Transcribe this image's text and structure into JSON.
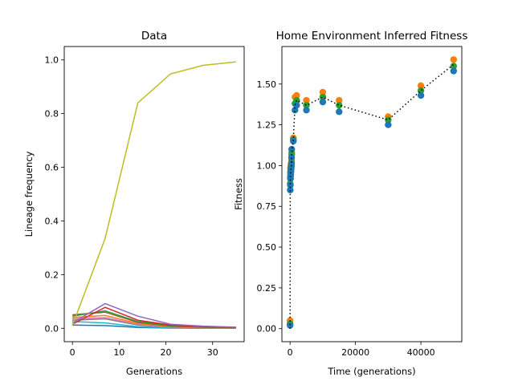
{
  "chart_data": [
    {
      "type": "line",
      "title": "Data",
      "xlabel": "Generations",
      "ylabel": "Lineage frequency",
      "xlim": [
        -1.75,
        36.75
      ],
      "ylim": [
        -0.05,
        1.05
      ],
      "xticks": [
        0,
        10,
        20,
        30
      ],
      "yticks": [
        0.0,
        0.2,
        0.4,
        0.6,
        0.8,
        1.0
      ],
      "xtick_labels": [
        "0",
        "10",
        "20",
        "30"
      ],
      "ytick_labels": [
        "0.0",
        "0.2",
        "0.4",
        "0.6",
        "0.8",
        "1.0"
      ],
      "x": [
        0,
        7,
        14,
        21,
        28,
        35
      ],
      "series": [
        {
          "color": "#bcbd22",
          "values": [
            0.01,
            0.335,
            0.84,
            0.948,
            0.98,
            0.993
          ]
        },
        {
          "color": "#9467bd",
          "values": [
            0.02,
            0.092,
            0.045,
            0.015,
            0.008,
            0.004
          ]
        },
        {
          "color": "#d62728",
          "values": [
            0.015,
            0.078,
            0.03,
            0.012,
            0.006,
            0.003
          ]
        },
        {
          "color": "#2ca02c",
          "values": [
            0.045,
            0.065,
            0.025,
            0.01,
            0.005,
            0.002
          ]
        },
        {
          "color": "#8c564b",
          "values": [
            0.05,
            0.06,
            0.022,
            0.008,
            0.004,
            0.002
          ]
        },
        {
          "color": "#ff7f0e",
          "values": [
            0.04,
            0.048,
            0.018,
            0.006,
            0.003,
            0.001
          ]
        },
        {
          "color": "#e377c2",
          "values": [
            0.035,
            0.04,
            0.015,
            0.005,
            0.002,
            0.001
          ]
        },
        {
          "color": "#7f7f7f",
          "values": [
            0.03,
            0.035,
            0.012,
            0.004,
            0.002,
            0.001
          ]
        },
        {
          "color": "#17becf",
          "values": [
            0.025,
            0.02,
            0.006,
            0.002,
            0.001,
            0.0
          ]
        },
        {
          "color": "#1f77b4",
          "values": [
            0.012,
            0.01,
            0.003,
            0.001,
            0.0,
            0.0
          ]
        }
      ]
    },
    {
      "type": "scatter",
      "title": "Home Environment Inferred Fitness",
      "xlabel": "Time (generations)",
      "ylabel": "Fitness",
      "xlim": [
        -2500,
        52500
      ],
      "ylim": [
        -0.08,
        1.73
      ],
      "xticks": [
        0,
        20000,
        40000
      ],
      "yticks": [
        0.0,
        0.25,
        0.5,
        0.75,
        1.0,
        1.25,
        1.5
      ],
      "xtick_labels": [
        "0",
        "20000",
        "40000"
      ],
      "ytick_labels": [
        "0.00",
        "0.25",
        "0.50",
        "0.75",
        "1.00",
        "1.25",
        "1.50"
      ],
      "mean_line": {
        "x": [
          0,
          50,
          100,
          150,
          200,
          250,
          300,
          350,
          400,
          450,
          500,
          1000,
          1500,
          2000,
          5000,
          10000,
          15000,
          30000,
          40000,
          50000
        ],
        "y": [
          0.0,
          0.9,
          0.92,
          0.95,
          0.96,
          0.97,
          0.98,
          0.99,
          1.0,
          1.02,
          1.07,
          1.16,
          1.37,
          1.4,
          1.37,
          1.42,
          1.37,
          1.28,
          1.46,
          1.62
        ]
      },
      "series": [
        {
          "color": "#1f77b4",
          "y": [
            0.02,
            0.85,
            0.88,
            0.92,
            0.94,
            0.96,
            0.98,
            0.99,
            1.01,
            1.05,
            1.1,
            1.15,
            1.34,
            1.37,
            1.34,
            1.39,
            1.33,
            1.25,
            1.43,
            1.58
          ]
        },
        {
          "color": "#ff7f0e",
          "y": [
            0.05,
            0.93,
            0.96,
            0.98,
            0.99,
            1.0,
            1.0,
            1.01,
            1.02,
            1.04,
            1.08,
            1.17,
            1.42,
            1.43,
            1.4,
            1.45,
            1.4,
            1.3,
            1.49,
            1.65
          ]
        },
        {
          "color": "#2ca02c",
          "y": [
            0.03,
            0.89,
            0.92,
            0.95,
            0.96,
            0.97,
            0.98,
            0.99,
            1.0,
            1.02,
            1.07,
            1.16,
            1.38,
            1.4,
            1.37,
            1.42,
            1.37,
            1.28,
            1.46,
            1.61
          ]
        }
      ]
    }
  ]
}
